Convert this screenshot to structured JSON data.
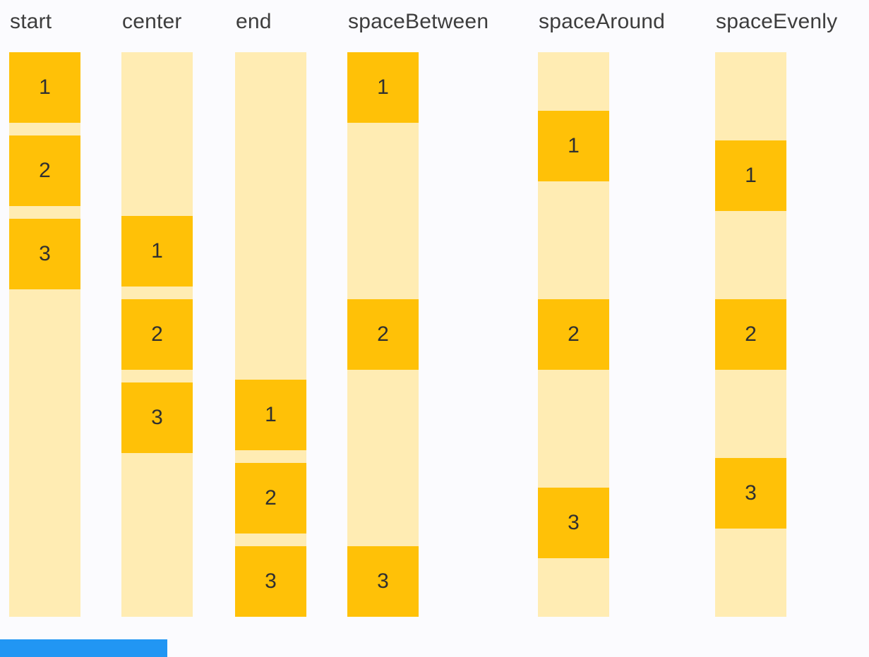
{
  "page": {
    "background_color": "#FBFBFE",
    "bottom_bar_color": "#2196F3"
  },
  "demo": {
    "item_color": "#FFC107",
    "container_color": "#FFECB3",
    "label_text_color": "#3D3D3D",
    "item_text_color": "#303030",
    "columns": [
      {
        "label": "start",
        "alignment": "start",
        "items": [
          "1",
          "2",
          "3"
        ]
      },
      {
        "label": "center",
        "alignment": "center",
        "items": [
          "1",
          "2",
          "3"
        ]
      },
      {
        "label": "end",
        "alignment": "end",
        "items": [
          "1",
          "2",
          "3"
        ]
      },
      {
        "label": "spaceBetween",
        "alignment": "spaceBetween",
        "items": [
          "1",
          "2",
          "3"
        ]
      },
      {
        "label": "spaceAround",
        "alignment": "spaceAround",
        "items": [
          "1",
          "2",
          "3"
        ]
      },
      {
        "label": "spaceEvenly",
        "alignment": "spaceEvenly",
        "items": [
          "1",
          "2",
          "3"
        ]
      }
    ]
  }
}
